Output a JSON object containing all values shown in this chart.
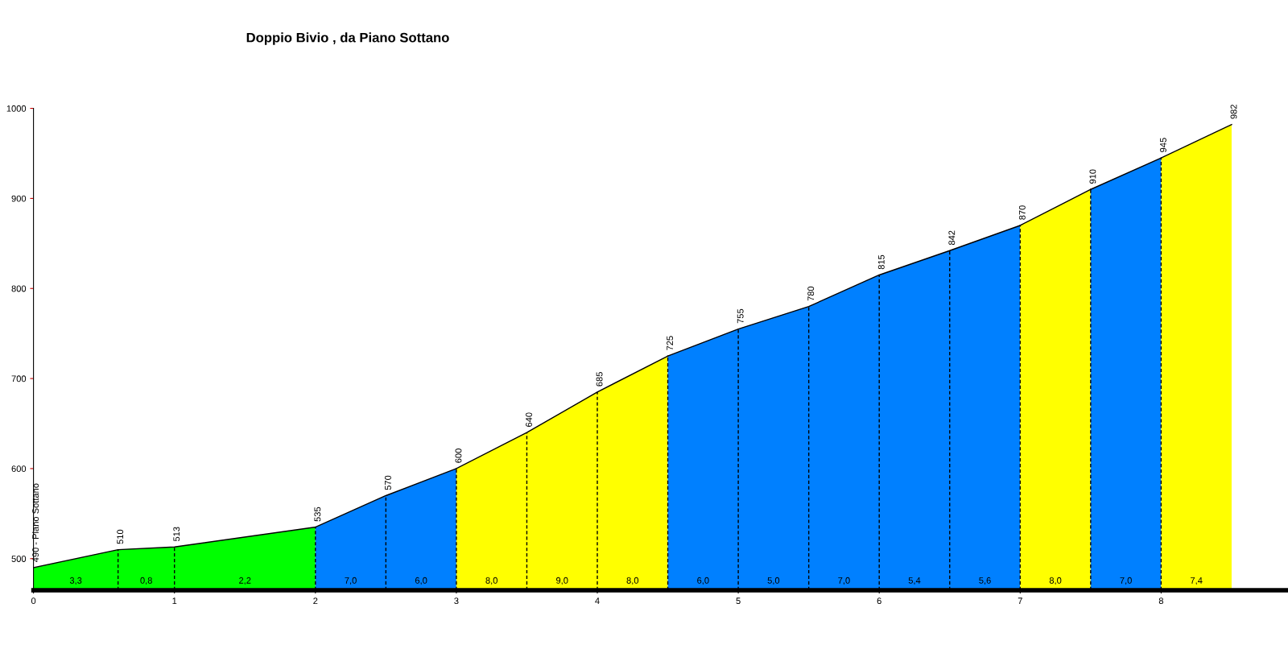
{
  "chart_data": {
    "type": "area",
    "title": "Doppio Bivio , da Piano Sottano",
    "series": [
      {
        "color": "#00ff00",
        "x": [
          0,
          0.6,
          1.0,
          2.0
        ],
        "values": [
          490,
          510,
          513,
          535
        ],
        "value_labels": [
          "490 - Piano Sottano",
          "510",
          "513",
          "535"
        ]
      },
      {
        "color": "#0080ff",
        "x": [
          2.0,
          2.5,
          3.0
        ],
        "values": [
          535,
          570,
          600
        ],
        "value_labels": [
          null,
          "570",
          "600"
        ]
      },
      {
        "color": "#ffff00",
        "x": [
          3.0,
          3.5,
          4.0,
          4.5
        ],
        "values": [
          600,
          640,
          685,
          725
        ],
        "value_labels": [
          null,
          "640",
          "685",
          "725"
        ]
      },
      {
        "color": "#0080ff",
        "x": [
          4.5,
          5.0,
          5.5,
          6.0,
          6.5,
          7.0
        ],
        "values": [
          725,
          755,
          780,
          815,
          842,
          870
        ],
        "value_labels": [
          null,
          "755",
          "780",
          "815",
          "842",
          "870"
        ]
      },
      {
        "color": "#ffff00",
        "x": [
          7.0,
          7.5
        ],
        "values": [
          870,
          910
        ],
        "value_labels": [
          null,
          "910"
        ]
      },
      {
        "color": "#0080ff",
        "x": [
          7.5,
          8.0
        ],
        "values": [
          910,
          945
        ],
        "value_labels": [
          null,
          "945"
        ]
      },
      {
        "color": "#ffff00",
        "x": [
          8.0,
          8.5
        ],
        "values": [
          945,
          982
        ],
        "value_labels": [
          null,
          "982"
        ]
      }
    ],
    "annotations": [
      "3,3",
      "0,8",
      "2,2",
      "7,0",
      "6,0",
      "8,0",
      "9,0",
      "8,0",
      "6,0",
      "5,0",
      "7,0",
      "5,4",
      "5,6",
      "8,0",
      "7,0",
      "7,4"
    ],
    "xlim": [
      0,
      8.9
    ],
    "ylim": [
      465,
      1000
    ],
    "xticks": [
      0,
      1,
      2,
      3,
      4,
      5,
      6,
      7,
      8
    ],
    "yticks": [
      500,
      600,
      700,
      800,
      900,
      1000
    ]
  }
}
